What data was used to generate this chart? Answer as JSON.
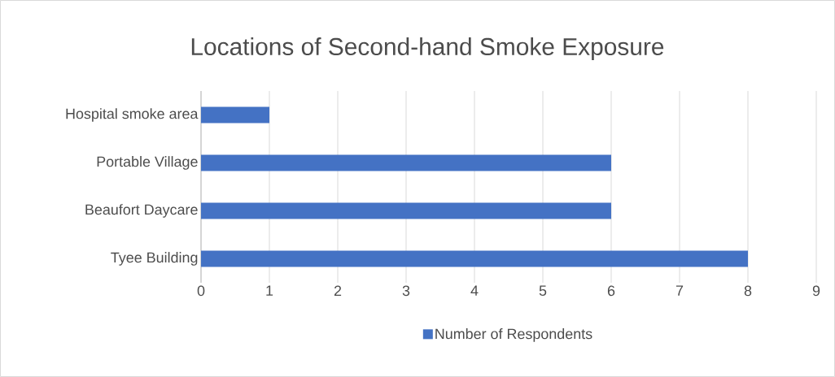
{
  "chart_data": {
    "type": "bar",
    "orientation": "horizontal",
    "title": "Locations of Second-hand Smoke Exposure",
    "categories": [
      "Hospital smoke area",
      "Portable Village",
      "Beaufort Daycare",
      "Tyee Building"
    ],
    "series": [
      {
        "name": "Number of Respondents",
        "color": "#4472c4",
        "values": [
          1,
          6,
          6,
          8
        ]
      }
    ],
    "xlim": [
      0,
      9
    ],
    "xticks": [
      0,
      1,
      2,
      3,
      4,
      5,
      6,
      7,
      8,
      9
    ],
    "grid": "x",
    "legend": "bottom"
  }
}
